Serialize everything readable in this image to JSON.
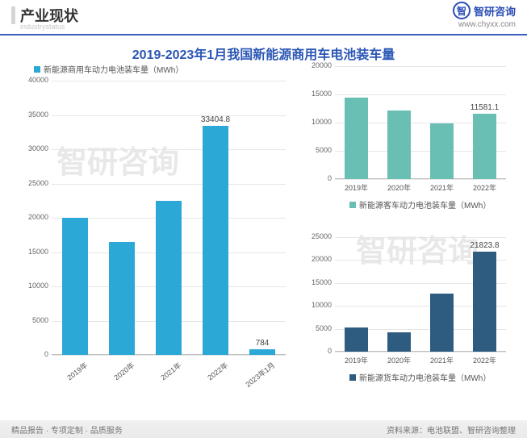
{
  "header": {
    "title": "产业现状",
    "subtitle": "industrystatus",
    "logo_text": "智研咨询",
    "logo_url": "www.chyxx.com"
  },
  "main_title": "2019-2023年1月我国新能源商用车电池装车量",
  "main_chart": {
    "type": "bar",
    "legend": "新能源商用车动力电池装车量（MWh）",
    "categories": [
      "2019年",
      "2020年",
      "2021年",
      "2022年",
      "2023年1月"
    ],
    "values": [
      20000,
      16500,
      22500,
      33404.8,
      784
    ],
    "annotated": {
      "3": "33404.8",
      "4": "784"
    },
    "bar_color": "#2ba8d6",
    "yticks": [
      0,
      5000,
      10000,
      15000,
      20000,
      25000,
      30000,
      35000,
      40000
    ],
    "ymax": 40000,
    "tick_fontsize": 9,
    "legend_fontsize": 10,
    "grid_color": "#e6e6e6",
    "axis_color": "#bfbfbf"
  },
  "top_chart": {
    "type": "bar",
    "legend": "新能源客车动力电池装车量（MWh）",
    "categories": [
      "2019年",
      "2020年",
      "2021年",
      "2022年"
    ],
    "values": [
      14500,
      12200,
      9900,
      11581.1
    ],
    "annotated": {
      "3": "11581.1"
    },
    "bar_color": "#69bfb3",
    "yticks": [
      0,
      5000,
      10000,
      15000,
      20000
    ],
    "ymax": 20000,
    "tick_fontsize": 9,
    "grid_color": "#e6e6e6",
    "axis_color": "#bfbfbf"
  },
  "bottom_chart": {
    "type": "bar",
    "legend": "新能源货车动力电池装车量（MWh）",
    "categories": [
      "2019年",
      "2020年",
      "2021年",
      "2022年"
    ],
    "values": [
      5300,
      4200,
      12700,
      21823.8
    ],
    "annotated": {
      "3": "21823.8"
    },
    "bar_color": "#2e5b80",
    "yticks": [
      0,
      5000,
      10000,
      15000,
      20000,
      25000
    ],
    "ymax": 25000,
    "tick_fontsize": 9,
    "grid_color": "#e6e6e6",
    "axis_color": "#bfbfbf"
  },
  "footer": {
    "left": "精品报告 · 专项定制 · 品质服务",
    "right": "资料来源：电池联盟、智研咨询整理"
  },
  "watermark": "智研咨询"
}
